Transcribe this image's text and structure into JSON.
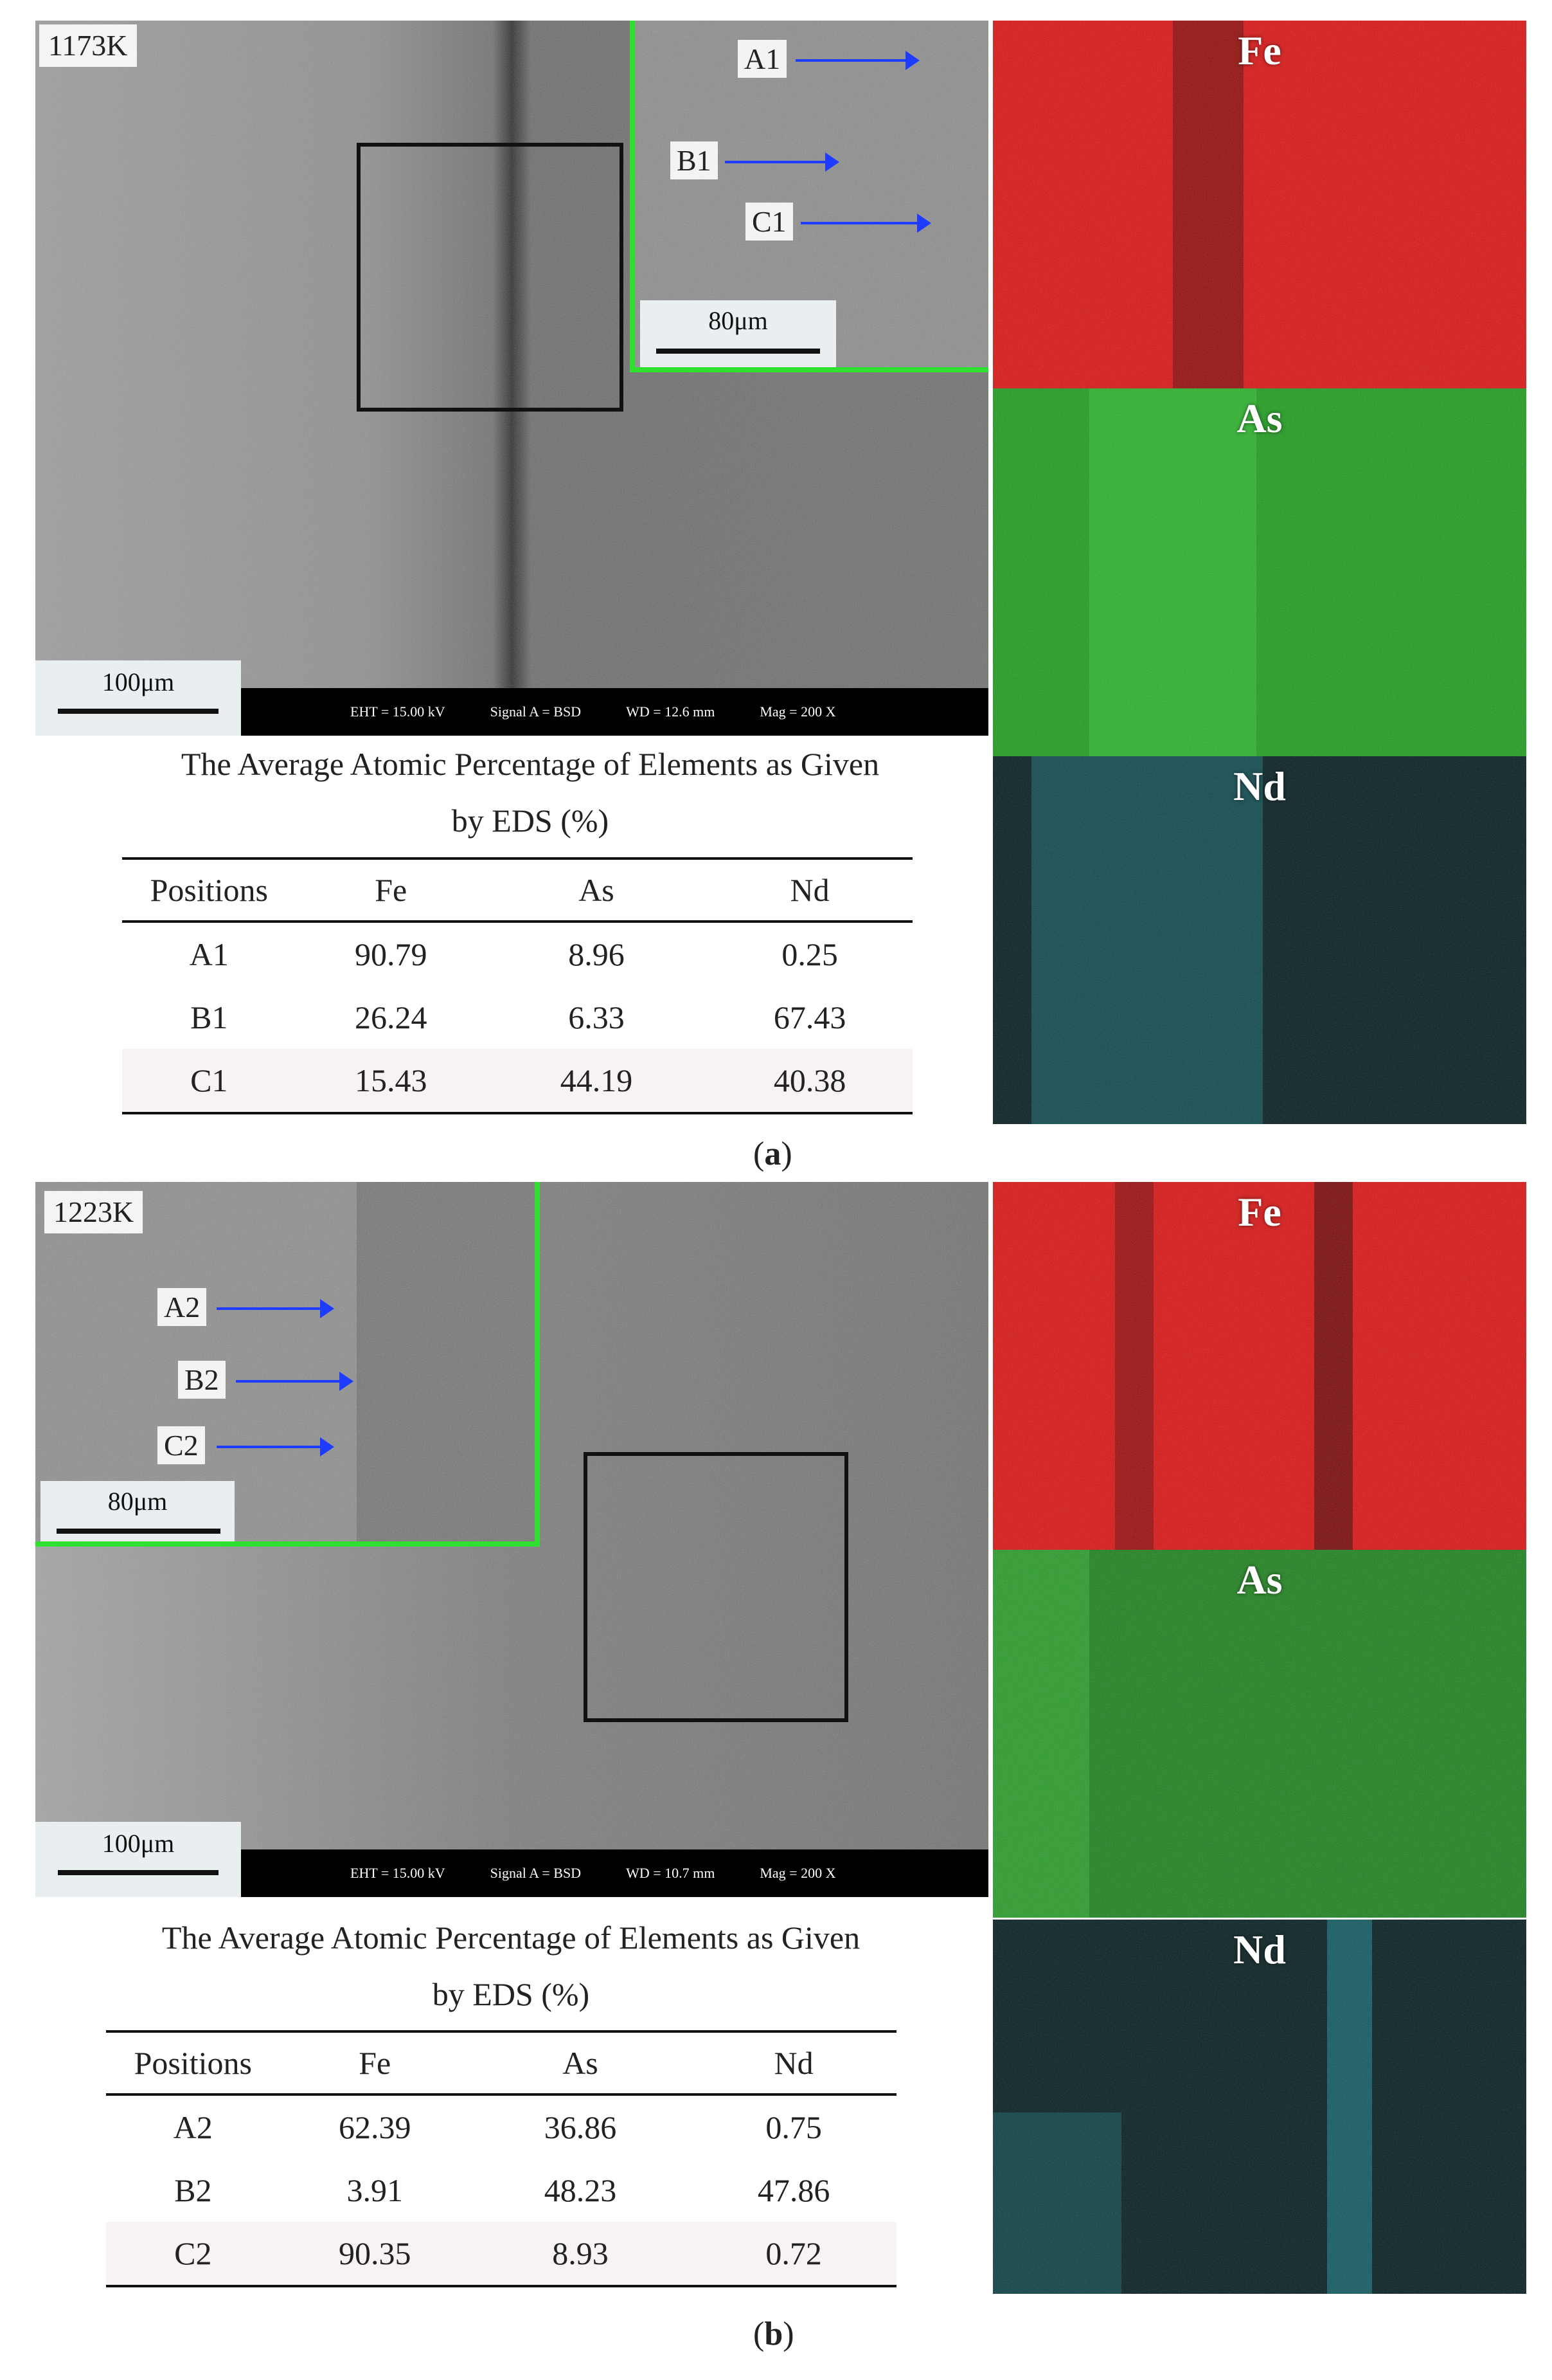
{
  "panels": [
    {
      "id": "a",
      "temperature": "1173K",
      "main_scale": "100μm",
      "inset_scale": "80μm",
      "markers": [
        "A1",
        "B1",
        "C1"
      ],
      "info_bar": [
        "EHT = 15.00 kV",
        "Signal A = BSD",
        "WD = 12.6 mm",
        "Mag =   200 X"
      ],
      "maps": [
        "Fe",
        "As",
        "Nd"
      ],
      "caption_line1": "The Average Atomic Percentage of Elements as Given",
      "caption_line2": "by EDS (%)",
      "headers": [
        "Positions",
        "Fe",
        "As",
        "Nd"
      ],
      "rows": [
        [
          "A1",
          "90.79",
          "8.96",
          "0.25"
        ],
        [
          "B1",
          "26.24",
          "6.33",
          "67.43"
        ],
        [
          "C1",
          "15.43",
          "44.19",
          "40.38"
        ]
      ],
      "label_open": "(",
      "label_letter": "a",
      "label_close": ")"
    },
    {
      "id": "b",
      "temperature": "1223K",
      "main_scale": "100μm",
      "inset_scale": "80μm",
      "markers": [
        "A2",
        "B2",
        "C2"
      ],
      "info_bar": [
        "EHT = 15.00 kV",
        "Signal A = BSD",
        "WD = 10.7 mm",
        "Mag =   200 X"
      ],
      "maps": [
        "Fe",
        "As",
        "Nd"
      ],
      "caption_line1": "The Average Atomic Percentage of Elements as Given",
      "caption_line2": "by EDS (%)",
      "headers": [
        "Positions",
        "Fe",
        "As",
        "Nd"
      ],
      "rows": [
        [
          "A2",
          "62.39",
          "36.86",
          "0.75"
        ],
        [
          "B2",
          "3.91",
          "48.23",
          "47.86"
        ],
        [
          "C2",
          "90.35",
          "8.93",
          "0.72"
        ]
      ],
      "label_open": "(",
      "label_letter": "b",
      "label_close": ")"
    }
  ],
  "colors": {
    "fe_map": "#e01010",
    "as_map": "#1fb51f",
    "nd_map": "#26c8d6",
    "inset_border": "#2fe02f",
    "arrow": "#1e3cff"
  }
}
